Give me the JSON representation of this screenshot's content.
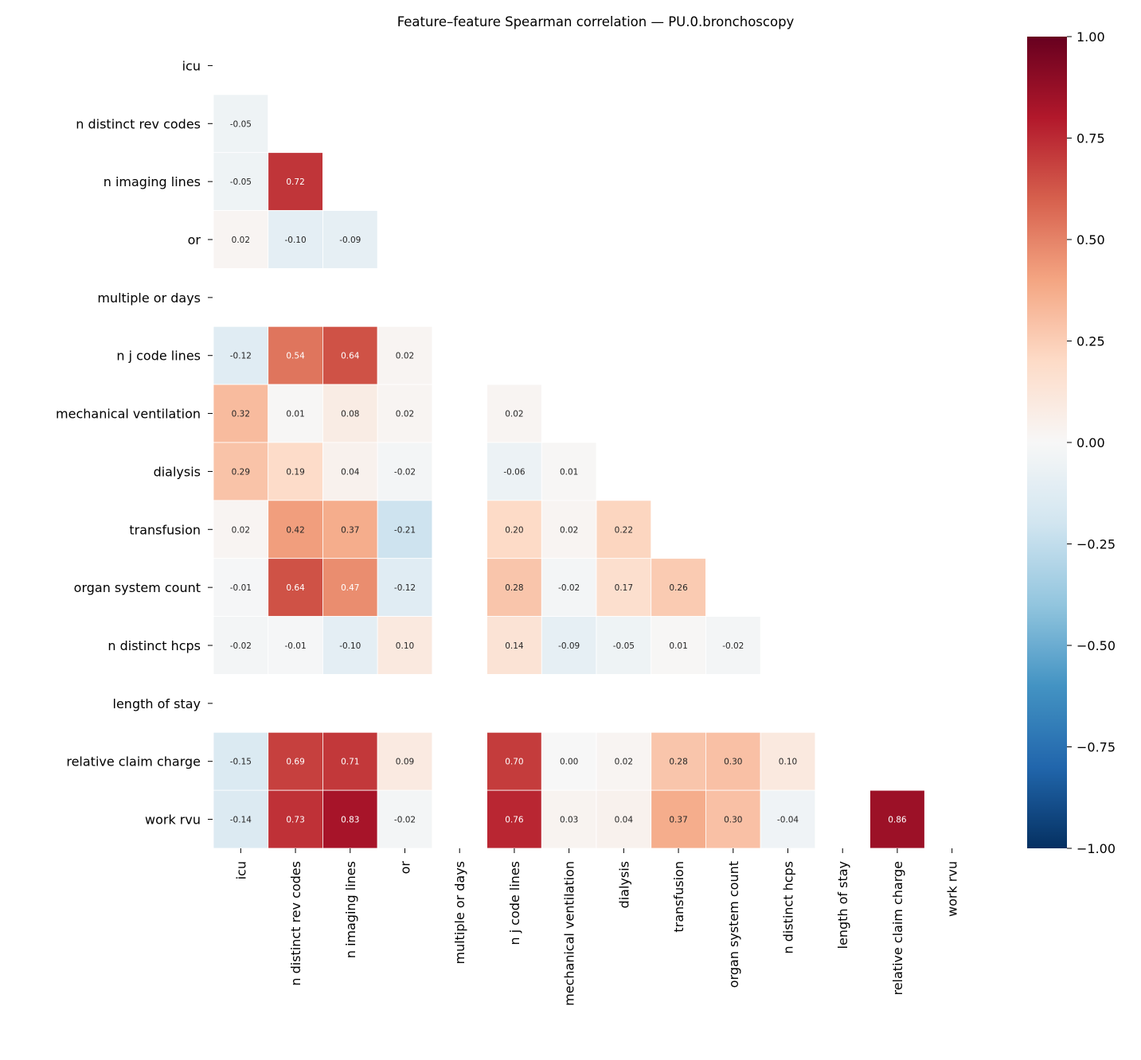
{
  "chart_data": {
    "type": "heatmap",
    "title": "Feature–feature Spearman correlation — PU.0.bronchoscopy",
    "labels": [
      "icu",
      "n distinct rev codes",
      "n imaging lines",
      "or",
      "multiple or days",
      "n j code lines",
      "mechanical ventilation",
      "dialysis",
      "transfusion",
      "organ system count",
      "n distinct hcps",
      "length of stay",
      "relative claim charge",
      "work rvu"
    ],
    "mask": "upper triangle incl. diagonal",
    "colormap": "RdBu_r",
    "vmin": -1,
    "vmax": 1,
    "colorbar_ticks": [
      "−1.00",
      "−0.75",
      "−0.50",
      "−0.25",
      "0.00",
      "0.25",
      "0.50",
      "0.75",
      "1.00"
    ],
    "colorbar_tick_values": [
      -1,
      -0.75,
      -0.5,
      -0.25,
      0,
      0.25,
      0.5,
      0.75,
      1
    ],
    "values": [
      [],
      [
        -0.05
      ],
      [
        -0.05,
        0.72
      ],
      [
        0.02,
        -0.1,
        -0.09
      ],
      [
        null,
        null,
        null,
        null
      ],
      [
        -0.12,
        0.54,
        0.64,
        0.02,
        null
      ],
      [
        0.32,
        0.01,
        0.08,
        0.02,
        null,
        0.02
      ],
      [
        0.29,
        0.19,
        0.04,
        -0.02,
        null,
        -0.06,
        0.01
      ],
      [
        0.02,
        0.42,
        0.37,
        -0.21,
        null,
        0.2,
        0.02,
        0.22
      ],
      [
        -0.01,
        0.64,
        0.47,
        -0.12,
        null,
        0.28,
        -0.02,
        0.17,
        0.26
      ],
      [
        -0.02,
        -0.01,
        -0.1,
        0.1,
        null,
        0.14,
        -0.09,
        -0.05,
        0.01,
        -0.02
      ],
      [
        null,
        null,
        null,
        null,
        null,
        null,
        null,
        null,
        null,
        null,
        null
      ],
      [
        -0.15,
        0.69,
        0.71,
        0.09,
        null,
        0.7,
        0.0,
        0.02,
        0.28,
        0.3,
        0.1,
        null
      ],
      [
        -0.14,
        0.73,
        0.83,
        -0.02,
        null,
        0.76,
        0.03,
        0.04,
        0.37,
        0.3,
        -0.04,
        null,
        0.86
      ]
    ]
  }
}
